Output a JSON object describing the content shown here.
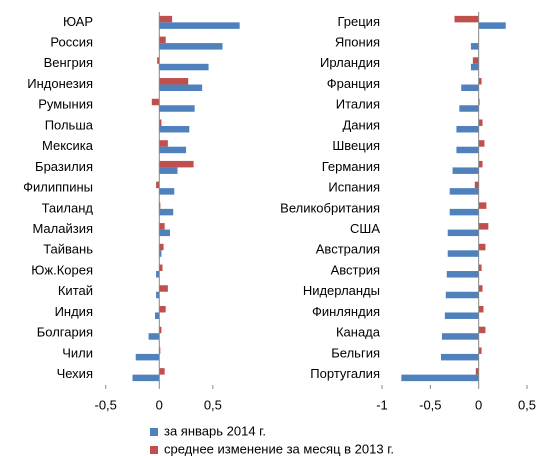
{
  "chart_data": [
    {
      "type": "bar",
      "orientation": "horizontal",
      "categories": [
        "ЮАР",
        "Россия",
        "Венгрия",
        "Индонезия",
        "Румыния",
        "Польша",
        "Мексика",
        "Бразилия",
        "Филиппины",
        "Таиланд",
        "Малайзия",
        "Тайвань",
        "Юж.Корея",
        "Китай",
        "Индия",
        "Болгария",
        "Чили",
        "Чехия"
      ],
      "series": [
        {
          "values": [
            0.75,
            0.59,
            0.46,
            0.4,
            0.33,
            0.28,
            0.25,
            0.17,
            0.14,
            0.13,
            0.1,
            0.02,
            -0.03,
            -0.03,
            -0.04,
            -0.1,
            -0.22,
            -0.25
          ]
        },
        {
          "values": [
            0.12,
            0.06,
            -0.02,
            0.27,
            -0.07,
            0.02,
            0.08,
            0.32,
            -0.03,
            0.01,
            0.05,
            0.04,
            0.03,
            0.08,
            0.06,
            0.02,
            0.01,
            0.05
          ]
        }
      ],
      "xlim": [
        -0.6,
        0.8
      ],
      "xticks": [
        {
          "value": -0.5,
          "label": "-0,5"
        },
        0,
        {
          "value": 0.5,
          "label": "0,5"
        }
      ]
    },
    {
      "type": "bar",
      "orientation": "horizontal",
      "categories": [
        "Греция",
        "Япония",
        "Ирландия",
        "Франция",
        "Италия",
        "Дания",
        "Швеция",
        "Германия",
        "Испания",
        "Великобритания",
        "США",
        "Австралия",
        "Австрия",
        "Нидерланды",
        "Финляндия",
        "Канада",
        "Бельгия",
        "Португалия"
      ],
      "series": [
        {
          "values": [
            0.28,
            -0.08,
            -0.08,
            -0.18,
            -0.2,
            -0.23,
            -0.23,
            -0.27,
            -0.3,
            -0.3,
            -0.32,
            -0.32,
            -0.33,
            -0.34,
            -0.35,
            -0.38,
            -0.39,
            -0.8
          ]
        },
        {
          "values": [
            -0.25,
            0,
            -0.06,
            0.03,
            0.01,
            0.04,
            0.06,
            0.04,
            -0.04,
            0.08,
            0.1,
            0.07,
            0.03,
            0.04,
            0.05,
            0.07,
            0.03,
            -0.03
          ]
        }
      ],
      "xlim": [
        -1,
        0.5
      ],
      "xticks": [
        -1,
        {
          "value": -0.5,
          "label": "-0,5"
        },
        0,
        {
          "value": 0.5,
          "label": "0,5"
        }
      ]
    }
  ],
  "legend": [
    {
      "name": "за январь 2014 г.",
      "color": "#4f81bd"
    },
    {
      "name": "среднее изменение за месяц в 2013 г.",
      "color": "#c0504d"
    }
  ]
}
